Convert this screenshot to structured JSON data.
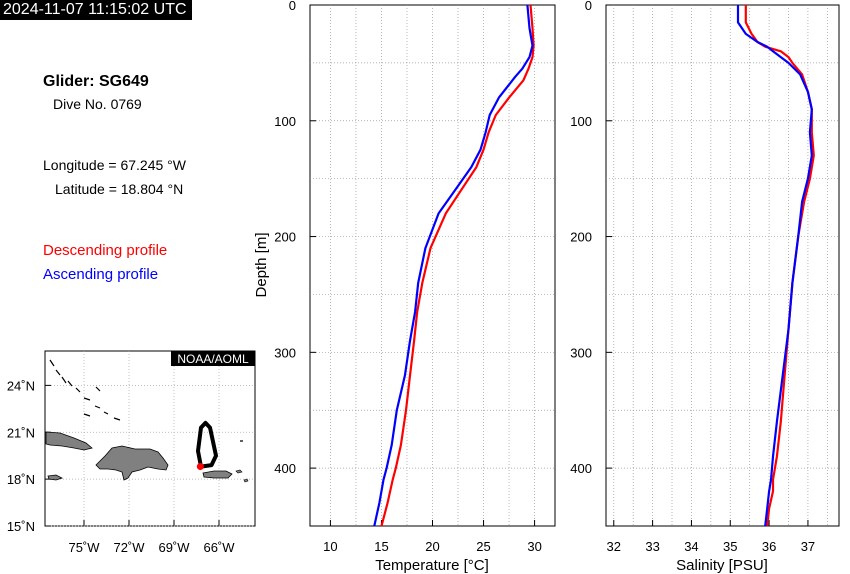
{
  "header": {
    "timestamp": "2024-11-07 11:15:02 UTC"
  },
  "info": {
    "glider": "Glider: SG649",
    "dive": "Dive No. 0769",
    "longitude": "Longitude = 67.245 °W",
    "latitude": "Latitude = 18.804 °N"
  },
  "legend": {
    "descending": "Descending profile",
    "ascending": "Ascending profile",
    "descending_color": "#ff0000",
    "ascending_color": "#0000ff"
  },
  "map": {
    "credit": "NOAA/AOML",
    "lat_ticks": [
      {
        "value": 24,
        "label": "24˚N"
      },
      {
        "value": 21,
        "label": "21˚N"
      },
      {
        "value": 18,
        "label": "18˚N"
      },
      {
        "value": 15,
        "label": "15˚N"
      }
    ],
    "lon_ticks": [
      {
        "value": -75,
        "label": "75˚W"
      },
      {
        "value": -72,
        "label": "72˚W"
      },
      {
        "value": -69,
        "label": "69˚W"
      },
      {
        "value": -66,
        "label": "66˚W"
      }
    ],
    "current_position": {
      "lon": -67.245,
      "lat": 18.804
    },
    "track": [
      [
        -67.2,
        18.8
      ],
      [
        -66.5,
        18.9
      ],
      [
        -66.2,
        19.5
      ],
      [
        -66.6,
        21.3
      ],
      [
        -66.9,
        21.6
      ],
      [
        -67.2,
        21.3
      ],
      [
        -67.4,
        19.8
      ],
      [
        -67.2,
        18.8
      ]
    ],
    "track_color": "#000000",
    "position_color": "#ff0000"
  },
  "chart_data": [
    {
      "type": "line",
      "xlabel": "Temperature [°C]",
      "ylabel": "Depth [m]",
      "xlim": [
        8,
        32
      ],
      "ylim": [
        450,
        0
      ],
      "xticks": [
        10,
        15,
        20,
        25,
        30
      ],
      "yticks": [
        0,
        100,
        200,
        300,
        400
      ],
      "grid": true,
      "series": [
        {
          "name": "Descending profile",
          "color": "#ff0000",
          "x": [
            29.6,
            29.8,
            29.9,
            29.8,
            29.4,
            28.9,
            27.5,
            26.2,
            25.5,
            25.0,
            24.3,
            22.8,
            21.3,
            19.8,
            19.0,
            18.5,
            18.2,
            17.8,
            17.4,
            16.9,
            16.4,
            16.1,
            15.6,
            15.0
          ],
          "y": [
            0,
            20,
            35,
            45,
            55,
            65,
            80,
            95,
            110,
            125,
            140,
            160,
            180,
            210,
            240,
            265,
            290,
            320,
            350,
            380,
            400,
            410,
            430,
            450
          ]
        },
        {
          "name": "Ascending profile",
          "color": "#0000ff",
          "x": [
            29.3,
            29.5,
            29.8,
            29.5,
            28.8,
            28.1,
            26.5,
            25.6,
            25.2,
            24.7,
            23.8,
            22.2,
            20.6,
            19.3,
            18.6,
            18.3,
            17.8,
            17.3,
            16.5,
            16.0,
            15.5,
            15.2,
            14.8,
            14.3
          ],
          "y": [
            0,
            20,
            35,
            45,
            55,
            62,
            80,
            95,
            110,
            125,
            140,
            160,
            180,
            210,
            240,
            265,
            290,
            320,
            350,
            380,
            400,
            410,
            430,
            450
          ]
        }
      ]
    },
    {
      "type": "line",
      "xlabel": "Salinity [PSU]",
      "ylabel": "",
      "xlim": [
        31.8,
        37.8
      ],
      "ylim": [
        450,
        0
      ],
      "xticks": [
        32,
        33,
        34,
        35,
        36,
        37
      ],
      "yticks": [
        0,
        100,
        200,
        300,
        400
      ],
      "grid": true,
      "series": [
        {
          "name": "Descending profile",
          "color": "#ff0000",
          "x": [
            35.4,
            35.4,
            35.55,
            35.7,
            35.9,
            36.3,
            36.5,
            36.6,
            36.85,
            37.0,
            37.1,
            37.1,
            37.15,
            37.05,
            36.9,
            36.75,
            36.6,
            36.5,
            36.4,
            36.3,
            36.2,
            36.1,
            36.1,
            36.0,
            35.95
          ],
          "y": [
            0,
            15,
            25,
            32,
            36,
            40,
            45,
            50,
            60,
            75,
            90,
            110,
            130,
            150,
            170,
            200,
            240,
            280,
            320,
            360,
            390,
            410,
            420,
            435,
            450
          ]
        },
        {
          "name": "Ascending profile",
          "color": "#0000ff",
          "x": [
            35.2,
            35.2,
            35.4,
            35.7,
            35.95,
            36.1,
            36.3,
            36.5,
            36.8,
            37.0,
            37.1,
            37.05,
            37.1,
            37.0,
            36.85,
            36.75,
            36.6,
            36.5,
            36.35,
            36.2,
            36.1,
            36.05,
            36.0,
            35.95,
            35.9
          ],
          "y": [
            0,
            15,
            25,
            32,
            36,
            40,
            45,
            50,
            60,
            75,
            90,
            110,
            130,
            150,
            170,
            200,
            240,
            280,
            320,
            360,
            390,
            410,
            420,
            435,
            450
          ]
        }
      ]
    }
  ]
}
